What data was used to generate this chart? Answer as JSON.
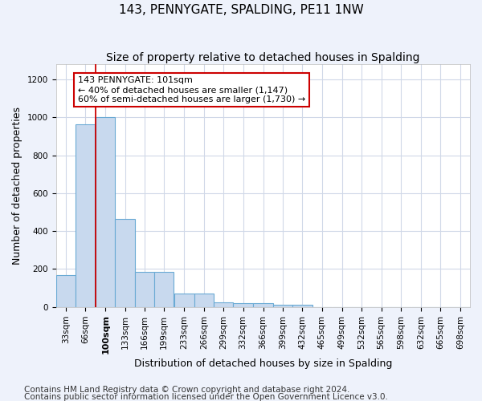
{
  "title": "143, PENNYGATE, SPALDING, PE11 1NW",
  "subtitle": "Size of property relative to detached houses in Spalding",
  "xlabel": "Distribution of detached houses by size in Spalding",
  "ylabel": "Number of detached properties",
  "bins": [
    33,
    66,
    100,
    133,
    166,
    199,
    233,
    266,
    299,
    332,
    366,
    399,
    432,
    465,
    499,
    532,
    565,
    598,
    632,
    665,
    698
  ],
  "counts": [
    170,
    965,
    1000,
    465,
    185,
    185,
    70,
    70,
    25,
    20,
    20,
    10,
    10,
    0,
    0,
    0,
    0,
    0,
    0,
    0,
    0
  ],
  "bar_color": "#c8d9ee",
  "bar_edge_color": "#6aaad4",
  "property_line_x": 100,
  "property_line_color": "#cc0000",
  "property_bin": 100,
  "annotation_text": "143 PENNYGATE: 101sqm\n← 40% of detached houses are smaller (1,147)\n60% of semi-detached houses are larger (1,730) →",
  "annotation_box_color": "#ffffff",
  "annotation_box_edge": "#cc0000",
  "ylim": [
    0,
    1280
  ],
  "yticks": [
    0,
    200,
    400,
    600,
    800,
    1000,
    1200
  ],
  "footnote1": "Contains HM Land Registry data © Crown copyright and database right 2024.",
  "footnote2": "Contains public sector information licensed under the Open Government Licence v3.0.",
  "bg_color": "#eef2fb",
  "plot_bg_color": "#ffffff",
  "grid_color": "#d0d8e8",
  "title_fontsize": 11,
  "subtitle_fontsize": 10,
  "xlabel_fontsize": 9,
  "ylabel_fontsize": 9,
  "tick_fontsize": 7.5,
  "footnote_fontsize": 7.5,
  "bin_width": 33
}
